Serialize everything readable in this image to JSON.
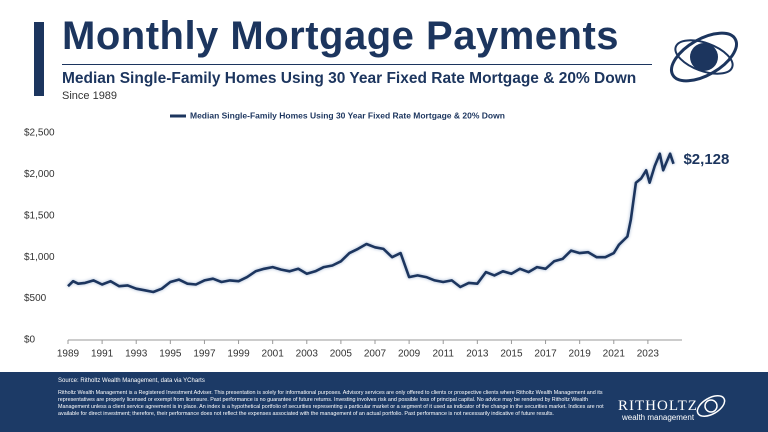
{
  "header": {
    "title": "Monthly Mortgage Payments",
    "subtitle": "Median Single-Family Homes Using 30 Year Fixed Rate Mortgage & 20% Down",
    "note": "Since 1989"
  },
  "chart_data": {
    "type": "line",
    "x": [
      1989,
      1989.3,
      1989.6,
      1990,
      1990.5,
      1991,
      1991.5,
      1992,
      1992.5,
      1993,
      1993.5,
      1994,
      1994.5,
      1995,
      1995.5,
      1996,
      1996.5,
      1997,
      1997.5,
      1998,
      1998.5,
      1999,
      1999.5,
      2000,
      2000.5,
      2001,
      2001.5,
      2002,
      2002.5,
      2003,
      2003.5,
      2004,
      2004.5,
      2005,
      2005.5,
      2006,
      2006.5,
      2007,
      2007.5,
      2008,
      2008.5,
      2009,
      2009.5,
      2010,
      2010.5,
      2011,
      2011.5,
      2012,
      2012.5,
      2013,
      2013.5,
      2014,
      2014.5,
      2015,
      2015.5,
      2016,
      2016.5,
      2017,
      2017.5,
      2018,
      2018.5,
      2019,
      2019.5,
      2020,
      2020.5,
      2021,
      2021.3,
      2021.8,
      2022,
      2022.3,
      2022.6,
      2022.9,
      2023.1,
      2023.4,
      2023.7,
      2023.9,
      2024.1,
      2024.3,
      2024.5
    ],
    "series": [
      {
        "name": "Median Single-Family Homes Using 30 Year Fixed Rate Mortgage & 20% Down",
        "color": "#1c355e",
        "values": [
          650,
          710,
          680,
          690,
          720,
          670,
          710,
          650,
          660,
          620,
          600,
          580,
          620,
          700,
          730,
          680,
          670,
          720,
          740,
          700,
          720,
          710,
          760,
          830,
          860,
          880,
          850,
          830,
          860,
          800,
          830,
          880,
          900,
          950,
          1050,
          1100,
          1160,
          1120,
          1100,
          1000,
          1050,
          760,
          780,
          760,
          720,
          700,
          720,
          640,
          690,
          680,
          820,
          780,
          830,
          800,
          860,
          820,
          880,
          860,
          950,
          980,
          1080,
          1050,
          1060,
          1000,
          1000,
          1050,
          1150,
          1250,
          1450,
          1900,
          1950,
          2050,
          1900,
          2100,
          2250,
          2050,
          2150,
          2250,
          2128
        ]
      }
    ],
    "xlim": [
      1989,
      2025
    ],
    "xticks": [
      1989,
      1991,
      1993,
      1995,
      1997,
      1999,
      2001,
      2003,
      2005,
      2007,
      2009,
      2011,
      2013,
      2015,
      2017,
      2019,
      2021,
      2023
    ],
    "ylim": [
      0,
      2500
    ],
    "yticks": [
      {
        "value": 0,
        "label": "$0"
      },
      {
        "value": 500,
        "label": "$500"
      },
      {
        "value": 1000,
        "label": "$1,000"
      },
      {
        "value": 1500,
        "label": "$1,500"
      },
      {
        "value": 2000,
        "label": "$2,000"
      },
      {
        "value": 2500,
        "label": "$2,500"
      }
    ],
    "end_label": {
      "value": 2128,
      "label": "$2,128"
    }
  },
  "footer": {
    "source": "Source: Ritholtz Wealth Management, data via YCharts",
    "disclaimer": "Ritholtz Wealth Management is a Registered Investment Adviser. This presentation is solely for informational purposes. Advisory services are only offered to clients or prospective clients where Ritholtz Wealth Management and its representatives are properly licensed or exempt from licensure. Past performance is no guarantee of future returns. Investing involves risk and possible loss of principal capital. No advice may be rendered by Ritholtz Wealth Management unless a client service agreement is in place. An index is a hypothetical portfolio of securities representing a particular market or a segment of it used as indicator of the change in the securities market. Indices are not available for direct investment; therefore, their performance does not reflect the expenses associated with the management of an actual portfolio. Past performance is not necessarily indicative of future results."
  },
  "logo": {
    "name": "RITHOLTZ",
    "tagline": "wealth management"
  }
}
